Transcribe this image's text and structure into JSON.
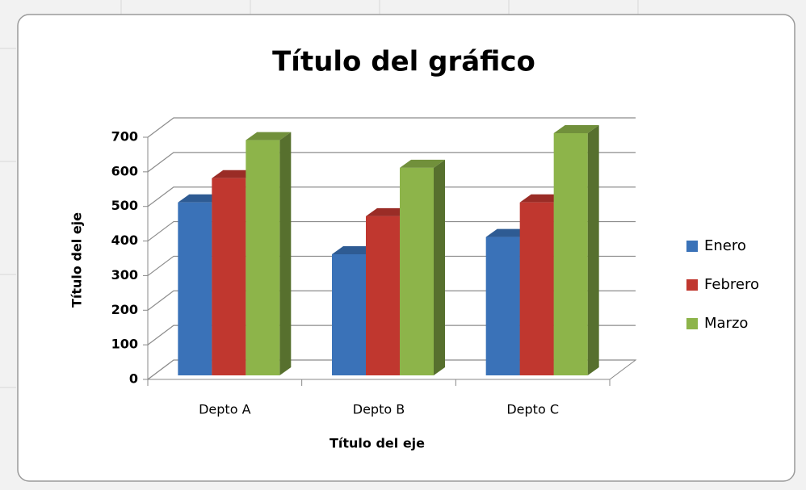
{
  "chart_data": {
    "type": "bar3d",
    "title": "Título del gráfico",
    "x_label": "Título del eje",
    "y_label": "Título del eje",
    "categories": [
      "Depto A",
      "Depto B",
      "Depto C"
    ],
    "series": [
      {
        "name": "Enero",
        "color": "#3a72b8",
        "values": [
          500,
          350,
          400
        ]
      },
      {
        "name": "Febrero",
        "color": "#c0372f",
        "values": [
          570,
          460,
          500
        ]
      },
      {
        "name": "Marzo",
        "color": "#8db44a",
        "values": [
          680,
          600,
          700
        ]
      }
    ],
    "ylim": [
      0,
      700
    ],
    "yticks": [
      0,
      100,
      200,
      300,
      400,
      500,
      600,
      700
    ],
    "grid": true,
    "legend": "right"
  }
}
